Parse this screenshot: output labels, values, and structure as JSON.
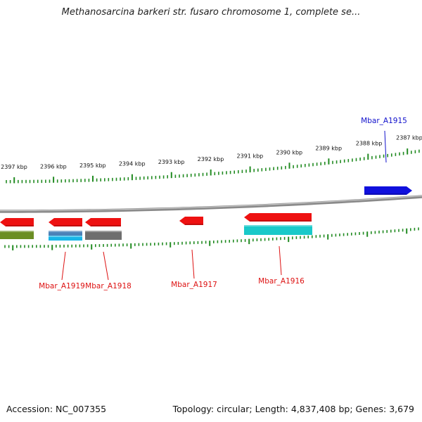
{
  "title": "Methanosarcina barkeri str. fusaro chromosome 1, complete se...",
  "footer": {
    "accession": "Accession: NC_007355",
    "summary": "Topology: circular; Length: 4,837,408 bp; Genes: 3,679"
  },
  "colors": {
    "background": "#ffffff",
    "tick_green": "#228b22",
    "backbone": "#8a8a8a",
    "gene_red": "#ee1111",
    "gene_blue": "#1010dd",
    "label_red": "#dd1111",
    "label_blue": "#1111cc",
    "cog_olive": "#6b8e23",
    "cog_steelblue": "#4b82b8",
    "cog_skyblue": "#18b6e8",
    "cog_gray": "#6e6e6e",
    "cog_cyan": "#19c9c9"
  },
  "scale": {
    "unit": "kbp",
    "labels": [
      "2397 kbp",
      "2396 kbp",
      "2395 kbp",
      "2394 kbp",
      "2393 kbp",
      "2392 kbp",
      "2391 kbp",
      "2390 kbp",
      "2389 kbp",
      "2388 kbp",
      "2387 kbp"
    ]
  },
  "genes": [
    {
      "name": "Mbar_A1919",
      "color_key": "gene_red",
      "label_color_key": "label_red",
      "strand": "-"
    },
    {
      "name": "Mbar_A1918",
      "color_key": "gene_red",
      "label_color_key": "label_red",
      "strand": "-"
    },
    {
      "name": "Mbar_A1917",
      "color_key": "gene_red",
      "label_color_key": "label_red",
      "strand": "-"
    },
    {
      "name": "Mbar_A1916",
      "color_key": "gene_red",
      "label_color_key": "label_red",
      "strand": "-"
    },
    {
      "name": "Mbar_A1915",
      "color_key": "gene_blue",
      "label_color_key": "label_blue",
      "strand": "+"
    }
  ],
  "cog_blocks": [
    {
      "id": "cog-olive",
      "color_key": "cog_olive"
    },
    {
      "id": "cog-steelblue",
      "color_key": "cog_steelblue"
    },
    {
      "id": "cog-skyblue",
      "color_key": "cog_skyblue"
    },
    {
      "id": "cog-gray",
      "color_key": "cog_gray"
    },
    {
      "id": "cog-cyan",
      "color_key": "cog_cyan"
    }
  ]
}
